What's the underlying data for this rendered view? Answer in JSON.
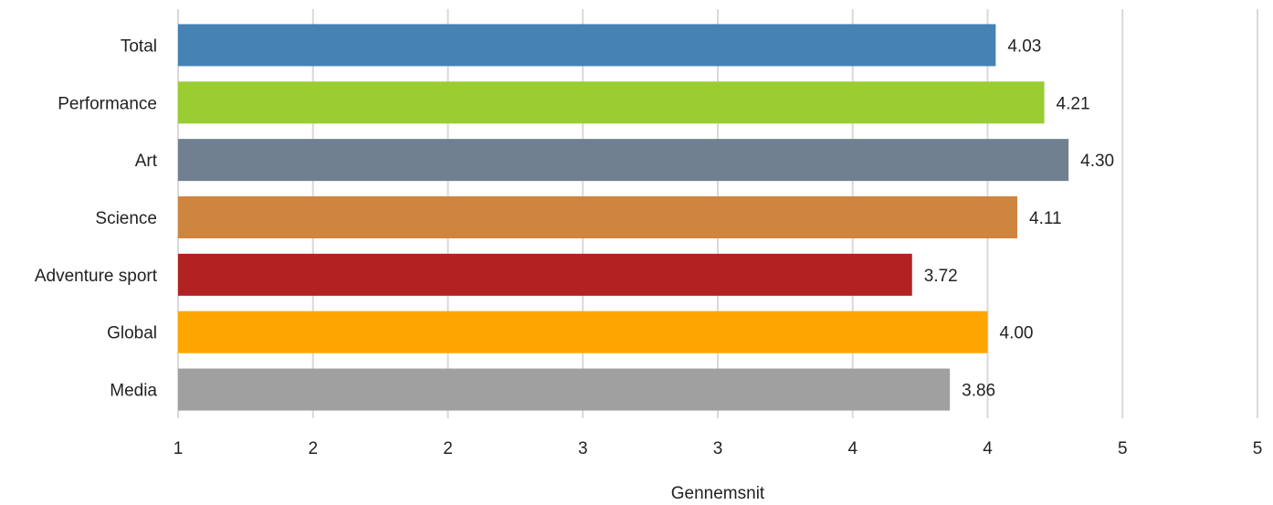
{
  "chart_data": {
    "type": "bar",
    "orientation": "horizontal",
    "categories": [
      "Total",
      "Performance",
      "Art",
      "Science",
      "Adventure sport",
      "Global",
      "Media"
    ],
    "values": [
      4.03,
      4.21,
      4.3,
      4.11,
      3.72,
      4.0,
      3.86
    ],
    "value_labels": [
      "4.03",
      "4.21",
      "4.30",
      "4.11",
      "3.72",
      "4.00",
      "3.86"
    ],
    "colors": [
      "#4682B4",
      "#9ACD32",
      "#708090",
      "#CD853F",
      "#B22222",
      "#FFA500",
      "#A0A0A0"
    ],
    "xlabel": "Gennemsnit",
    "xlim": [
      1,
      5
    ],
    "x_ticks": [
      1,
      1.5,
      2,
      2.5,
      3,
      3.5,
      4,
      4.5,
      5
    ],
    "x_tick_labels": [
      "1",
      "2",
      "2",
      "3",
      "3",
      "4",
      "4",
      "5",
      "5"
    ],
    "grid": "vertical",
    "legend": "none"
  }
}
